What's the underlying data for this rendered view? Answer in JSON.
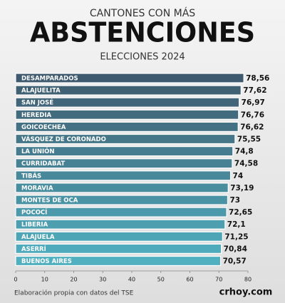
{
  "chart_data": {
    "type": "bar",
    "orientation": "horizontal",
    "title_top": "CANTONES CON MÁS",
    "title": "ABSTENCIONES",
    "subtitle": "ELECCIONES 2024",
    "categories": [
      "DESAMPARADOS",
      "ALAJUELITA",
      "SAN JOSÉ",
      "HEREDIA",
      "GOICOECHEA",
      "VÁSQUEZ DE CORONADO",
      "LA UNIÓN",
      "CURRIDABAT",
      "TIBÁS",
      "MORAVIA",
      "MONTES DE OCA",
      "POCOCÍ",
      "LIBERIA",
      "ALAJUELA",
      "ASERRÍ",
      "BUENOS AIRES"
    ],
    "values": [
      78.56,
      77.62,
      76.97,
      76.76,
      76.62,
      75.55,
      74.8,
      74.58,
      74,
      73.19,
      73,
      72.65,
      72.1,
      71.25,
      70.84,
      70.57
    ],
    "value_labels": [
      "78,56",
      "77,62",
      "76,97",
      "76,76",
      "76,62",
      "75,55",
      "74,8",
      "74,58",
      "74",
      "73,19",
      "73",
      "72,65",
      "72,1",
      "71,25",
      "70,84",
      "70,57"
    ],
    "colors": [
      "#3f5a6e",
      "#406073",
      "#416579",
      "#426b7e",
      "#447184",
      "#457789",
      "#467c8f",
      "#478294",
      "#48889a",
      "#498e9f",
      "#4a93a5",
      "#4b99aa",
      "#4d9fb0",
      "#4ea5b5",
      "#4faabb",
      "#50b0c0"
    ],
    "xlim": [
      0,
      80
    ],
    "xticks": [
      0,
      10,
      20,
      30,
      40,
      50,
      60,
      70,
      80
    ],
    "source": "Elaboración propia con datos del TSE",
    "logo": "crhoy.com"
  }
}
